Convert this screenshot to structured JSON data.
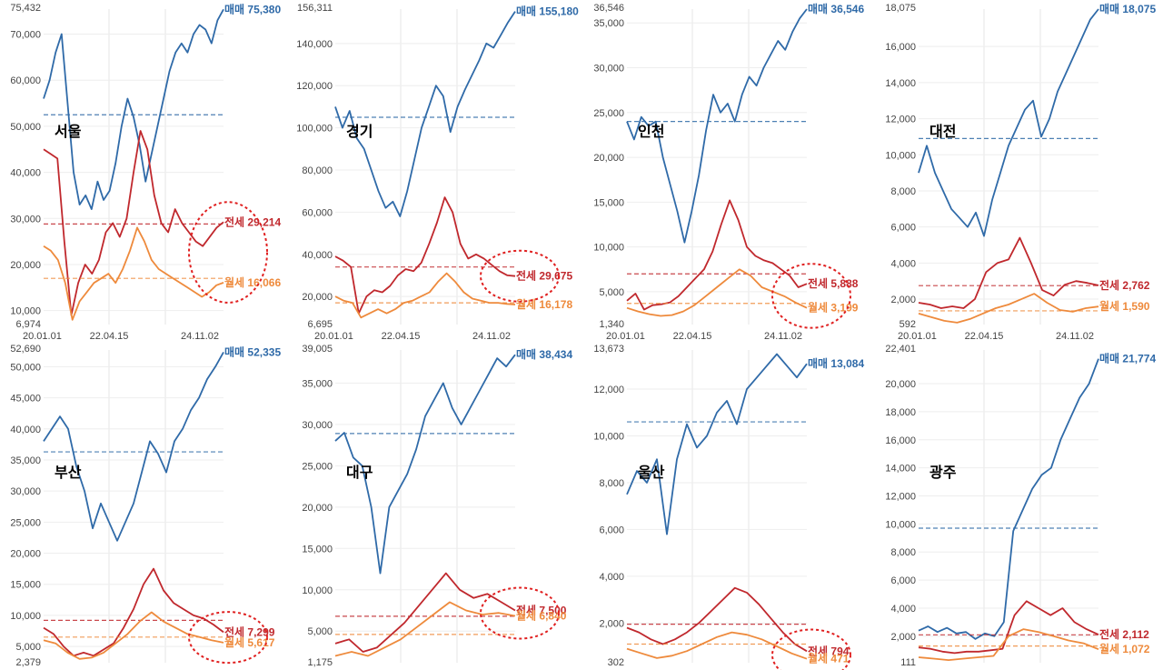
{
  "chart_data": [
    {
      "type": "line",
      "region": "서울",
      "ymin": 6974,
      "ymax": 75432,
      "yticks": [
        10000,
        20000,
        30000,
        40000,
        50000,
        60000,
        70000
      ],
      "xticks": [
        "20.01.01",
        "22.04.15",
        "24.11.02"
      ],
      "series": [
        {
          "name": "매매",
          "color": "#2f6aa8",
          "last": 75380,
          "avg": 52500,
          "values": [
            56000,
            60000,
            66000,
            70000,
            55000,
            40000,
            33000,
            35000,
            32000,
            38000,
            34000,
            36000,
            42000,
            50000,
            56000,
            52000,
            46000,
            38000,
            44000,
            50000,
            56000,
            62000,
            66000,
            68000,
            66000,
            70000,
            72000,
            71000,
            68000,
            73000,
            75380
          ]
        },
        {
          "name": "전세",
          "color": "#c0282d",
          "last": 29214,
          "avg": 28800,
          "highlight": true,
          "values": [
            45000,
            44000,
            43000,
            25000,
            9000,
            16000,
            20000,
            18000,
            21000,
            27000,
            29000,
            26000,
            30000,
            40000,
            49000,
            45000,
            35000,
            29000,
            27000,
            32000,
            29000,
            27000,
            25000,
            24000,
            26000,
            28000,
            29214
          ]
        },
        {
          "name": "월세",
          "color": "#ee8a3c",
          "last": 16066,
          "avg": 17000,
          "highlight": true,
          "values": [
            24000,
            23000,
            21000,
            16000,
            8000,
            12000,
            14000,
            16000,
            17000,
            18000,
            16000,
            19000,
            23000,
            28000,
            25000,
            21000,
            19000,
            18000,
            17000,
            16000,
            15000,
            14000,
            13000,
            14000,
            15500,
            16066
          ]
        }
      ]
    },
    {
      "type": "line",
      "region": "경기",
      "ymin": 6695,
      "ymax": 156311,
      "yticks": [
        20000,
        40000,
        60000,
        80000,
        100000,
        120000,
        140000
      ],
      "xticks": [
        "20.01.01",
        "22.04.15",
        "24.11.02"
      ],
      "series": [
        {
          "name": "매매",
          "color": "#2f6aa8",
          "last": 155180,
          "avg": 105000,
          "values": [
            110000,
            100000,
            108000,
            95000,
            90000,
            80000,
            70000,
            62000,
            65000,
            58000,
            70000,
            85000,
            100000,
            110000,
            120000,
            115000,
            98000,
            110000,
            118000,
            125000,
            132000,
            140000,
            138000,
            144000,
            150000,
            155180
          ]
        },
        {
          "name": "전세",
          "color": "#c0282d",
          "last": 29675,
          "avg": 34000,
          "highlight": true,
          "values": [
            39000,
            37000,
            34000,
            12000,
            20000,
            23000,
            22000,
            25000,
            30000,
            33000,
            32000,
            36000,
            45000,
            55000,
            67000,
            60000,
            45000,
            38000,
            40000,
            38000,
            35000,
            32000,
            30000,
            29675
          ]
        },
        {
          "name": "월세",
          "color": "#ee8a3c",
          "last": 16178,
          "avg": 17000,
          "values": [
            20000,
            18000,
            17000,
            10000,
            12000,
            14000,
            12000,
            14000,
            17000,
            18000,
            20000,
            22000,
            27000,
            31000,
            27000,
            22000,
            19000,
            18000,
            17000,
            17000,
            16500,
            16178
          ]
        }
      ]
    },
    {
      "type": "line",
      "region": "인천",
      "ymin": 1340,
      "ymax": 36546,
      "yticks": [
        5000,
        10000,
        15000,
        20000,
        25000,
        30000,
        35000
      ],
      "xticks": [
        "20.01.01",
        "22.04.15",
        "24.11.02"
      ],
      "series": [
        {
          "name": "매매",
          "color": "#2f6aa8",
          "last": 36546,
          "avg": 24000,
          "values": [
            24000,
            22000,
            24500,
            23500,
            24000,
            20000,
            17000,
            14000,
            10500,
            14000,
            18000,
            23000,
            27000,
            25000,
            26000,
            24000,
            27000,
            29000,
            28000,
            30000,
            31500,
            33000,
            32000,
            34000,
            35500,
            36546
          ]
        },
        {
          "name": "전세",
          "color": "#c0282d",
          "last": 5888,
          "avg": 7000,
          "highlight": true,
          "values": [
            4000,
            4800,
            3000,
            3500,
            3600,
            3800,
            4500,
            5500,
            6500,
            7500,
            9500,
            12500,
            15200,
            13000,
            10000,
            9000,
            8500,
            8200,
            7500,
            6800,
            5500,
            5888
          ]
        },
        {
          "name": "월세",
          "color": "#ee8a3c",
          "last": 3199,
          "avg": 3700,
          "highlight": true,
          "values": [
            3200,
            2800,
            2500,
            2300,
            2400,
            2800,
            3500,
            4500,
            5500,
            6500,
            7500,
            6800,
            5500,
            5000,
            4500,
            3800,
            3199
          ]
        }
      ]
    },
    {
      "type": "line",
      "region": "대전",
      "ymin": 592,
      "ymax": 18075,
      "yticks": [
        2000,
        4000,
        6000,
        8000,
        10000,
        12000,
        14000,
        16000
      ],
      "xticks": [
        "20.01.01",
        "22.04.15",
        "24.11.02"
      ],
      "series": [
        {
          "name": "매매",
          "color": "#2f6aa8",
          "last": 18075,
          "avg": 10900,
          "values": [
            9000,
            10500,
            9000,
            8000,
            7000,
            6500,
            6000,
            6800,
            5500,
            7500,
            9000,
            10500,
            11500,
            12500,
            13000,
            11000,
            12000,
            13500,
            14500,
            15500,
            16500,
            17500,
            18075
          ]
        },
        {
          "name": "전세",
          "color": "#c0282d",
          "last": 2762,
          "avg": 2750,
          "values": [
            1800,
            1700,
            1500,
            1600,
            1500,
            2000,
            3500,
            4000,
            4200,
            5400,
            4000,
            2500,
            2200,
            2800,
            3000,
            2900,
            2762
          ]
        },
        {
          "name": "월세",
          "color": "#ee8a3c",
          "last": 1590,
          "avg": 1350,
          "values": [
            1200,
            1000,
            800,
            700,
            900,
            1200,
            1500,
            1700,
            2000,
            2300,
            1800,
            1400,
            1300,
            1500,
            1590
          ]
        }
      ]
    },
    {
      "type": "line",
      "region": "부산",
      "ymin": 2379,
      "ymax": 52690,
      "yticks": [
        5000,
        10000,
        15000,
        20000,
        25000,
        30000,
        35000,
        40000,
        45000,
        50000
      ],
      "xticks": [],
      "series": [
        {
          "name": "매매",
          "color": "#2f6aa8",
          "last": 52335,
          "avg": 36300,
          "values": [
            38000,
            40000,
            42000,
            40000,
            34000,
            30000,
            24000,
            28000,
            25000,
            22000,
            25000,
            28000,
            33000,
            38000,
            36000,
            33000,
            38000,
            40000,
            43000,
            45000,
            48000,
            50000,
            52335
          ]
        },
        {
          "name": "전세",
          "color": "#c0282d",
          "last": 7299,
          "avg": 9200,
          "highlight": true,
          "values": [
            8000,
            7000,
            5000,
            3500,
            4000,
            3500,
            4500,
            5500,
            8000,
            11000,
            15000,
            17500,
            14000,
            12000,
            11000,
            10000,
            9500,
            8500,
            7299
          ]
        },
        {
          "name": "월세",
          "color": "#ee8a3c",
          "last": 5617,
          "avg": 6500,
          "highlight": true,
          "values": [
            6000,
            5500,
            4000,
            3000,
            3200,
            4000,
            5500,
            7000,
            9000,
            10500,
            9000,
            8000,
            7000,
            6500,
            6000,
            5617
          ]
        }
      ]
    },
    {
      "type": "line",
      "region": "대구",
      "ymin": 1175,
      "ymax": 39005,
      "yticks": [
        5000,
        10000,
        15000,
        20000,
        25000,
        30000,
        35000
      ],
      "xticks": [],
      "series": [
        {
          "name": "매매",
          "color": "#2f6aa8",
          "last": 38434,
          "avg": 28900,
          "values": [
            28000,
            29000,
            26000,
            25000,
            20000,
            12000,
            20000,
            22000,
            24000,
            27000,
            31000,
            33000,
            35000,
            32000,
            30000,
            32000,
            34000,
            36000,
            38000,
            37000,
            38434
          ]
        },
        {
          "name": "전세",
          "color": "#c0282d",
          "last": 7500,
          "avg": 6800,
          "highlight": true,
          "values": [
            3500,
            4000,
            2500,
            3000,
            4500,
            6000,
            8000,
            10000,
            12000,
            10000,
            9000,
            9500,
            8500,
            7500
          ]
        },
        {
          "name": "월세",
          "color": "#ee8a3c",
          "last": 6840,
          "avg": 4600,
          "highlight": true,
          "values": [
            2000,
            2500,
            2000,
            3000,
            4000,
            5500,
            7000,
            8500,
            7500,
            7000,
            7200,
            6840
          ]
        }
      ]
    },
    {
      "type": "line",
      "region": "울산",
      "ymin": 302,
      "ymax": 13673,
      "yticks": [
        2000,
        4000,
        6000,
        8000,
        10000,
        12000
      ],
      "xticks": [],
      "series": [
        {
          "name": "매매",
          "color": "#2f6aa8",
          "last": 13084,
          "avg": 10600,
          "values": [
            7500,
            8500,
            8000,
            9000,
            5800,
            9000,
            10500,
            9500,
            10000,
            11000,
            11500,
            10500,
            12000,
            12500,
            13000,
            13500,
            13000,
            12500,
            13084
          ]
        },
        {
          "name": "전세",
          "color": "#c0282d",
          "last": 794,
          "avg": 1950,
          "highlight": true,
          "values": [
            1800,
            1600,
            1300,
            1100,
            1300,
            1600,
            2000,
            2500,
            3000,
            3500,
            3300,
            2800,
            2200,
            1600,
            1100,
            794
          ]
        },
        {
          "name": "월세",
          "color": "#ee8a3c",
          "last": 471,
          "avg": 1100,
          "highlight": true,
          "values": [
            900,
            700,
            500,
            600,
            800,
            1100,
            1400,
            1600,
            1500,
            1300,
            1000,
            700,
            471
          ]
        }
      ]
    },
    {
      "type": "line",
      "region": "광주",
      "ymin": 111,
      "ymax": 22401,
      "yticks": [
        2000,
        4000,
        6000,
        8000,
        10000,
        12000,
        14000,
        16000,
        18000,
        20000
      ],
      "xticks": [],
      "series": [
        {
          "name": "매매",
          "color": "#2f6aa8",
          "last": 21774,
          "avg": 9700,
          "values": [
            2400,
            2700,
            2300,
            2600,
            2200,
            2300,
            1800,
            2200,
            2000,
            3000,
            9500,
            11000,
            12500,
            13500,
            14000,
            16000,
            17500,
            19000,
            20000,
            21774
          ]
        },
        {
          "name": "전세",
          "color": "#c0282d",
          "last": 2112,
          "avg": 2100,
          "values": [
            1200,
            1100,
            900,
            800,
            900,
            900,
            1000,
            1100,
            3500,
            4500,
            4000,
            3500,
            4000,
            3000,
            2500,
            2112
          ]
        },
        {
          "name": "월세",
          "color": "#ee8a3c",
          "last": 1072,
          "avg": 1300,
          "values": [
            500,
            400,
            300,
            400,
            500,
            600,
            2000,
            2500,
            2300,
            2000,
            1700,
            1500,
            1072
          ]
        }
      ]
    }
  ]
}
